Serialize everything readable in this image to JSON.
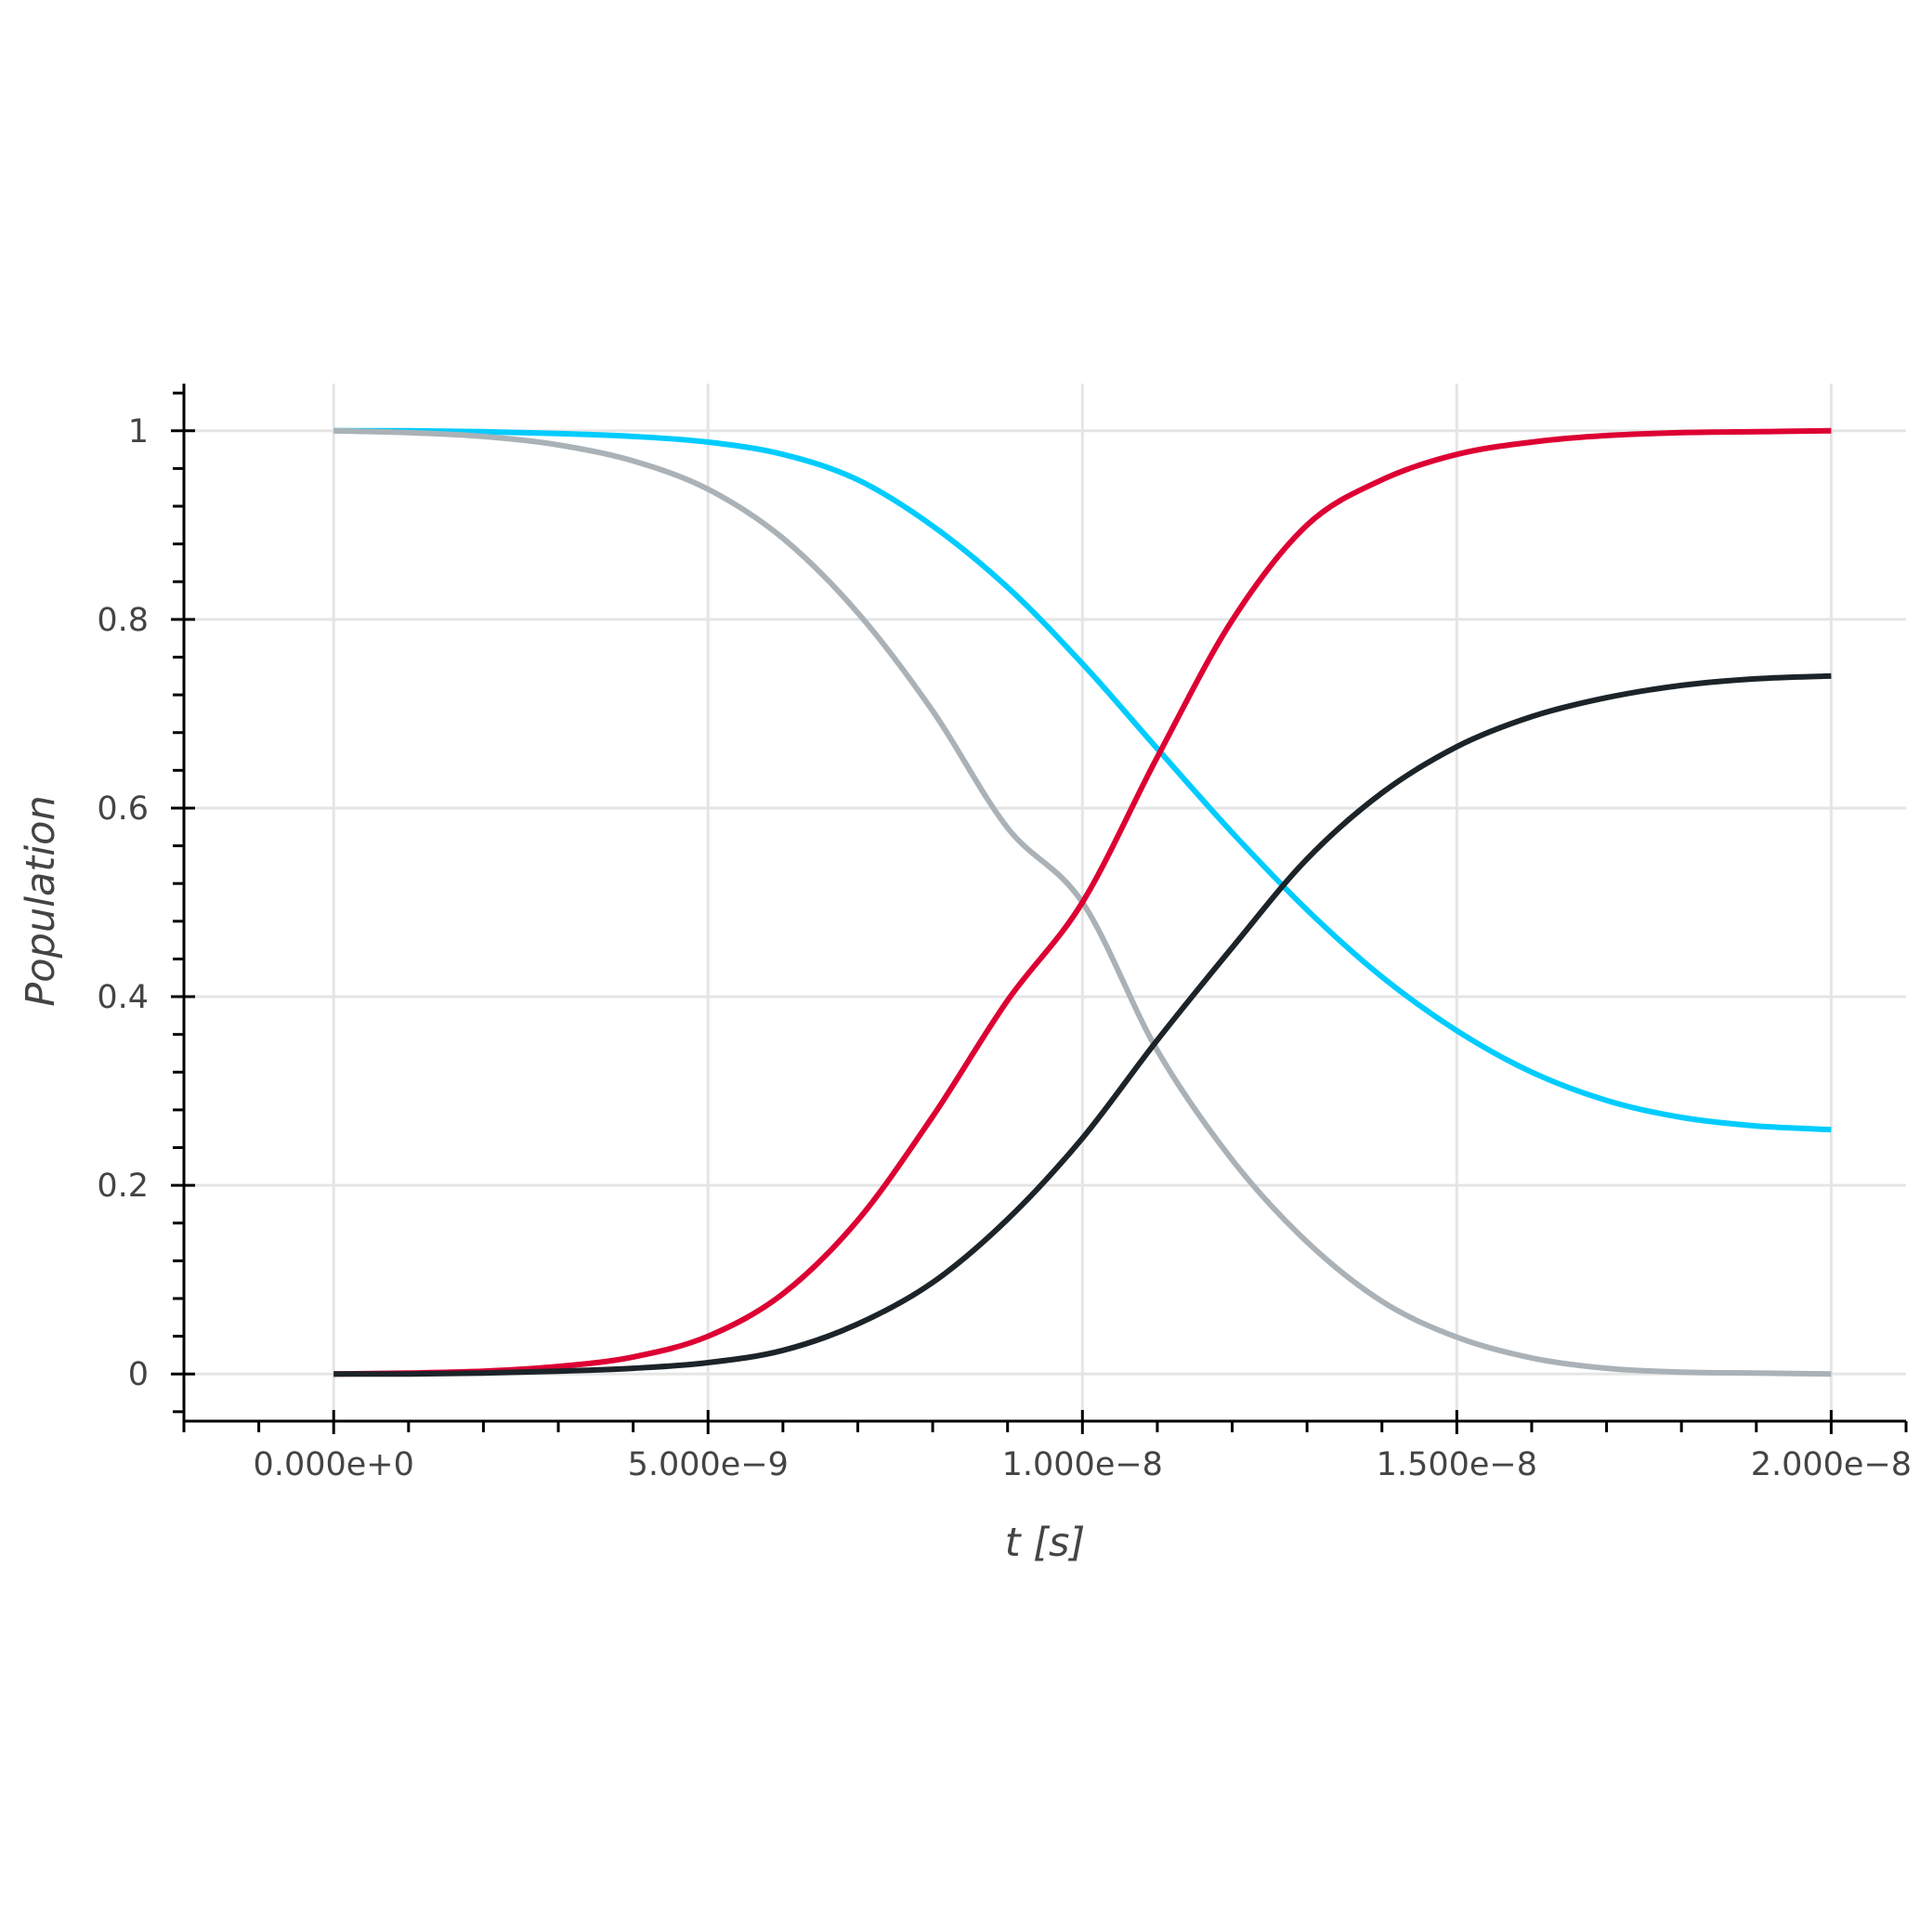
{
  "chart_data": {
    "type": "line",
    "title": "",
    "xlabel": "t [s]",
    "ylabel": "Population",
    "xlim": [
      -2e-09,
      2.1e-08
    ],
    "ylim": [
      -0.05,
      1.05
    ],
    "grid": true,
    "x_ticks": [
      0,
      5e-09,
      1e-08,
      1.5e-08,
      2e-08
    ],
    "x_tick_labels": [
      "0.000e+0",
      "5.000e−9",
      "1.000e−8",
      "1.500e−8",
      "2.000e−8"
    ],
    "y_ticks": [
      0,
      0.2,
      0.4,
      0.6,
      0.8,
      1
    ],
    "y_tick_labels": [
      "0",
      "0.2",
      "0.4",
      "0.6",
      "0.8",
      "1"
    ],
    "x": [
      0,
      1e-09,
      2e-09,
      3e-09,
      4e-09,
      5e-09,
      6e-09,
      7e-09,
      8e-09,
      9e-09,
      1e-08,
      1.1e-08,
      1.2e-08,
      1.3e-08,
      1.4e-08,
      1.5e-08,
      1.6e-08,
      1.7e-08,
      1.8e-08,
      1.9e-08,
      2e-08
    ],
    "series": [
      {
        "color": "#00ccff",
        "values": [
          1.0,
          1.0,
          0.999,
          0.997,
          0.994,
          0.988,
          0.975,
          0.948,
          0.899,
          0.834,
          0.753,
          0.663,
          0.574,
          0.492,
          0.421,
          0.364,
          0.32,
          0.29,
          0.272,
          0.263,
          0.259
        ]
      },
      {
        "color": "#aab2b7",
        "values": [
          1.0,
          0.998,
          0.994,
          0.985,
          0.968,
          0.938,
          0.886,
          0.807,
          0.703,
          0.579,
          0.5,
          0.343,
          0.227,
          0.14,
          0.077,
          0.039,
          0.017,
          0.006,
          0.002,
          0.001,
          0.0
        ]
      },
      {
        "color": "#dd0033",
        "values": [
          0.0,
          0.001,
          0.003,
          0.008,
          0.018,
          0.04,
          0.085,
          0.163,
          0.273,
          0.396,
          0.5,
          0.654,
          0.799,
          0.9,
          0.948,
          0.975,
          0.988,
          0.995,
          0.998,
          0.999,
          1.0
        ]
      },
      {
        "color": "#1c2429",
        "values": [
          0.0,
          0.0,
          0.001,
          0.003,
          0.006,
          0.012,
          0.025,
          0.053,
          0.097,
          0.164,
          0.25,
          0.354,
          0.452,
          0.546,
          0.616,
          0.665,
          0.697,
          0.717,
          0.73,
          0.737,
          0.74
        ]
      }
    ]
  }
}
